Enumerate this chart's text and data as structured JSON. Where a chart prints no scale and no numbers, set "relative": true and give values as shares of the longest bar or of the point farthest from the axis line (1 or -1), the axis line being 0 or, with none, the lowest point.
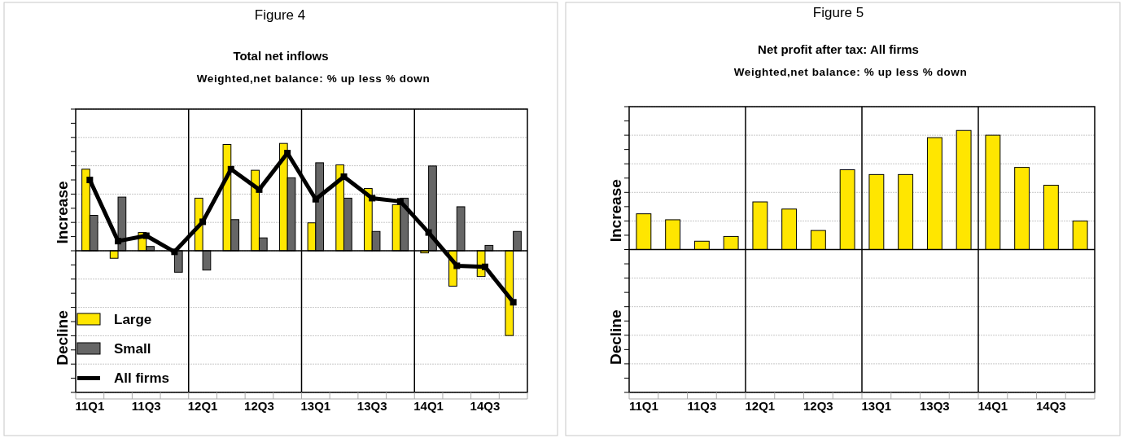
{
  "chart_data": [
    {
      "type": "bar",
      "title": "Total net inflows",
      "subtitle": "Weighted,net balance: % up less % down",
      "annotations": [
        "Figure 4",
        "Increase",
        "Decline"
      ],
      "relative": true,
      "grid": "y",
      "legend": "bottom left",
      "tick_labels": "x",
      "marker": "square",
      "line_style": "solid",
      "categories": [
        "11Q1",
        null,
        "11Q3",
        null,
        "12Q1",
        null,
        "12Q3",
        null,
        "13Q1",
        null,
        "13Q3",
        null,
        "14Q1",
        null,
        "14Q3",
        null
      ],
      "series": [
        {
          "name": "Large",
          "color": "#ffe600",
          "values": [
            0.76,
            -0.07,
            0.17,
            0,
            0.49,
            0.99,
            0.75,
            1,
            0.26,
            0.8,
            0.58,
            0.43,
            -0.02,
            -0.33,
            -0.24,
            -0.79
          ]
        },
        {
          "name": "Small",
          "color": "#666666",
          "values": [
            0.33,
            0.5,
            0.04,
            -0.2,
            -0.18,
            0.29,
            0.12,
            0.68,
            0.82,
            0.49,
            0.18,
            0.49,
            0.79,
            0.41,
            0.05,
            0.18
          ]
        },
        {
          "name": "All firms",
          "type": "line",
          "color": "#000000",
          "values": [
            0.66,
            0.09,
            0.14,
            -0.01,
            0.27,
            0.76,
            0.57,
            0.91,
            0.48,
            0.69,
            0.49,
            0.46,
            0.17,
            -0.14,
            -0.15,
            -0.48
          ]
        }
      ]
    },
    {
      "type": "bar",
      "title": "Net profit after tax: All firms",
      "subtitle": "Weighted,net balance: % up less % down",
      "annotations": [
        "Figure 5",
        "Increase",
        "Decline"
      ],
      "relative": true,
      "grid": "y",
      "tick_labels": "x",
      "categories": [
        "11Q1",
        null,
        "11Q3",
        null,
        "12Q1",
        null,
        "12Q3",
        null,
        "13Q1",
        null,
        "13Q3",
        null,
        "14Q1",
        null,
        "14Q3",
        null
      ],
      "series": [
        {
          "color": "#ffe600",
          "values": [
            0.3,
            0.25,
            0.07,
            0.11,
            0.4,
            0.34,
            0.16,
            0.67,
            0.63,
            0.63,
            0.94,
            1,
            0.96,
            0.69,
            0.54,
            0.24
          ]
        }
      ]
    }
  ]
}
